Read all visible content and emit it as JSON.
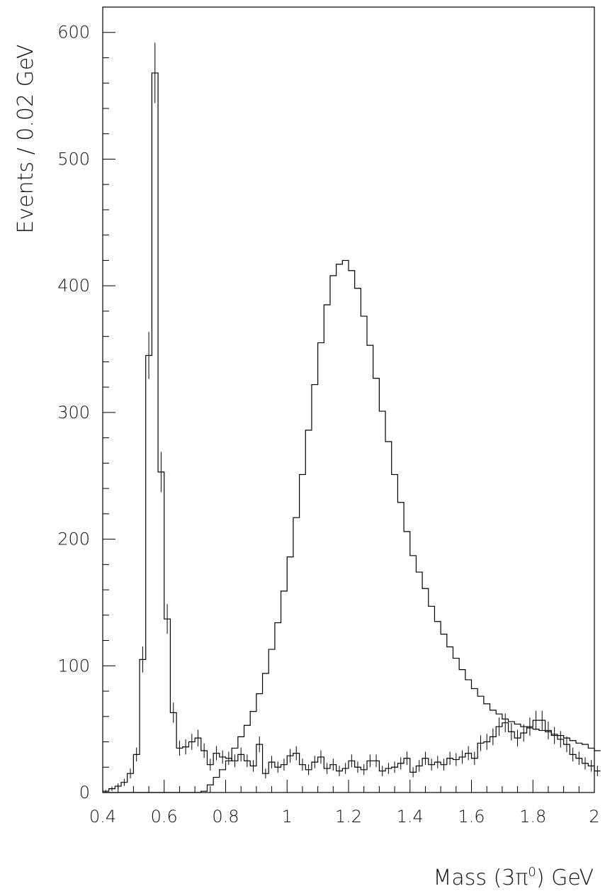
{
  "chart_data": {
    "type": "histogram",
    "xlabel": "Mass (3π⁰) GeV",
    "xlabel_parts": {
      "pre": "Mass (3π",
      "sup": "0",
      "post": ") GeV"
    },
    "ylabel": "Events / 0.02 GeV",
    "xlim": [
      0.4,
      2.0
    ],
    "ylim": [
      0,
      620
    ],
    "bin_width": 0.02,
    "x_ticks": [
      0.4,
      0.6,
      0.8,
      1.0,
      1.2,
      1.4,
      1.6,
      1.8,
      2.0
    ],
    "x_tick_labels": [
      "0.4",
      "0.6",
      "0.8",
      "1",
      "1.2",
      "1.4",
      "1.6",
      "1.8",
      "2"
    ],
    "y_ticks": [
      0,
      100,
      200,
      300,
      400,
      500,
      600
    ],
    "y_tick_labels": [
      "0",
      "100",
      "200",
      "300",
      "400",
      "500",
      "600"
    ],
    "grid": false,
    "series": [
      {
        "style": "histogram-with-error-bars",
        "x_start": 0.4,
        "values": [
          1,
          3,
          5,
          8,
          15,
          30,
          105,
          345,
          568,
          253,
          137,
          63,
          35,
          36,
          40,
          43,
          33,
          22,
          31,
          28,
          27,
          25,
          30,
          25,
          21,
          38,
          15,
          24,
          20,
          22,
          29,
          31,
          22,
          18,
          24,
          28,
          19,
          22,
          17,
          19,
          25,
          20,
          18,
          25,
          25,
          17,
          19,
          20,
          23,
          27,
          16,
          21,
          27,
          22,
          24,
          22,
          27,
          26,
          28,
          31,
          27,
          39,
          40,
          44,
          52,
          55,
          48,
          43,
          47,
          52,
          57,
          57,
          49,
          45,
          42,
          38,
          30,
          27,
          23,
          21,
          17
        ]
      },
      {
        "style": "histogram",
        "x_start": 0.4,
        "values": [
          0,
          0,
          0,
          0,
          0,
          0,
          0,
          0,
          0,
          0,
          0,
          0,
          0,
          0,
          0,
          0,
          1,
          6,
          12,
          18,
          25,
          35,
          44,
          53,
          64,
          78,
          94,
          113,
          134,
          159,
          186,
          217,
          251,
          286,
          322,
          355,
          385,
          408,
          417,
          420,
          412,
          398,
          376,
          353,
          327,
          301,
          277,
          251,
          229,
          206,
          187,
          174,
          161,
          147,
          135,
          125,
          115,
          106,
          97,
          89,
          82,
          76,
          70,
          65,
          62,
          58,
          56,
          54,
          52,
          51,
          50,
          49,
          48,
          46,
          45,
          43,
          41,
          39,
          38,
          35,
          33
        ]
      }
    ]
  }
}
